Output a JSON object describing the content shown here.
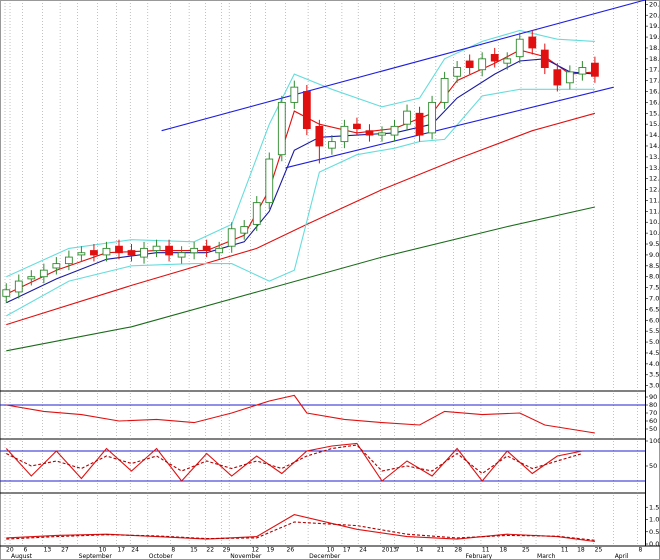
{
  "chart_data": {
    "type": "candlestick",
    "xlim": [
      -0.5,
      51
    ],
    "xticks": [
      {
        "value": -0.1,
        "label": "20"
      },
      {
        "value": 0.3,
        "label": "August"
      },
      {
        "value": 1.3,
        "label": "6"
      },
      {
        "value": 2.9,
        "label": "13"
      },
      {
        "value": 4.3,
        "label": "27"
      },
      {
        "value": 5.7,
        "label": "September"
      },
      {
        "value": 7.3,
        "label": "10"
      },
      {
        "value": 8.8,
        "label": "17"
      },
      {
        "value": 9.9,
        "label": "24"
      },
      {
        "value": 11.3,
        "label": "October"
      },
      {
        "value": 13.1,
        "label": "8"
      },
      {
        "value": 14.6,
        "label": "15"
      },
      {
        "value": 15.9,
        "label": "22"
      },
      {
        "value": 17.2,
        "label": "29"
      },
      {
        "value": 17.8,
        "label": "November"
      },
      {
        "value": 19.5,
        "label": "12"
      },
      {
        "value": 20.7,
        "label": "19"
      },
      {
        "value": 22.3,
        "label": "26"
      },
      {
        "value": 24.1,
        "label": "December"
      },
      {
        "value": 25.5,
        "label": "10"
      },
      {
        "value": 26.8,
        "label": "17"
      },
      {
        "value": 28.1,
        "label": "24"
      },
      {
        "value": 29.9,
        "label": "2013"
      },
      {
        "value": 31.0,
        "label": "7"
      },
      {
        "value": 32.6,
        "label": "14"
      },
      {
        "value": 34.3,
        "label": "21"
      },
      {
        "value": 35.7,
        "label": "28"
      },
      {
        "value": 36.6,
        "label": "February"
      },
      {
        "value": 37.9,
        "label": "11"
      },
      {
        "value": 39.3,
        "label": "18"
      },
      {
        "value": 41.1,
        "label": "25"
      },
      {
        "value": 42.3,
        "label": "March"
      },
      {
        "value": 44.2,
        "label": "11"
      },
      {
        "value": 45.5,
        "label": "18"
      },
      {
        "value": 46.9,
        "label": "25"
      },
      {
        "value": 48.5,
        "label": "April"
      },
      {
        "value": 50.4,
        "label": "8"
      }
    ],
    "ylim": [
      2.8,
      20.7
    ],
    "yticks": [
      {
        "value": 3,
        "label": "3.0"
      },
      3.5,
      {
        "value": 4,
        "label": "4.0"
      },
      4.5,
      {
        "value": 5,
        "label": "5.0"
      },
      5.5,
      {
        "value": 6,
        "label": "6.0"
      },
      6.5,
      {
        "value": 7,
        "label": "7.0"
      },
      7.5,
      {
        "value": 8,
        "label": "8.0"
      },
      8.5,
      {
        "value": 9,
        "label": "9.0"
      },
      9.5,
      {
        "value": 10,
        "label": "10.0"
      },
      10.5,
      {
        "value": 11,
        "label": "11.0"
      },
      11.5,
      {
        "value": 12,
        "label": "12.0"
      },
      12.5,
      {
        "value": 13,
        "label": "13.0"
      },
      13.5,
      {
        "value": 14,
        "label": "14.0"
      },
      14.5,
      {
        "value": 15,
        "label": "15.0"
      },
      15.5,
      {
        "value": 16,
        "label": "16.0"
      },
      16.5,
      {
        "value": 17,
        "label": "17.0"
      },
      17.5,
      {
        "value": 18,
        "label": "18.0"
      },
      18.5,
      {
        "value": 19,
        "label": "19.0"
      },
      19.5,
      {
        "value": 20,
        "label": "20.0"
      },
      20.5
    ],
    "up_color": "#2e8b2e",
    "down_color": "#e01010",
    "open": [
      7.1,
      7.3,
      7.9,
      8.0,
      8.4,
      8.6,
      9.0,
      9.2,
      9.0,
      9.4,
      9.2,
      8.9,
      9.2,
      9.4,
      8.9,
      9.1,
      9.4,
      9.1,
      9.4,
      10.0,
      10.4,
      11.4,
      13.6,
      16.0,
      16.5,
      14.9,
      13.9,
      14.2,
      15.0,
      14.7,
      14.5,
      14.5,
      15.0,
      15.5,
      14.6,
      16.0,
      17.2,
      17.9,
      17.5,
      18.2,
      17.8,
      18.1,
      19.0,
      18.4,
      17.5,
      16.9,
      17.3,
      17.8
    ],
    "high": [
      7.7,
      8.1,
      8.3,
      8.6,
      8.9,
      9.2,
      9.4,
      9.5,
      9.6,
      9.7,
      9.5,
      9.6,
      9.7,
      9.7,
      9.4,
      9.6,
      9.7,
      9.6,
      10.5,
      10.6,
      11.7,
      13.7,
      16.3,
      17.0,
      16.8,
      15.2,
      14.5,
      15.2,
      15.3,
      15.0,
      14.9,
      15.2,
      15.9,
      15.8,
      16.3,
      17.4,
      17.9,
      18.2,
      18.3,
      18.5,
      18.3,
      19.2,
      19.3,
      18.7,
      17.8,
      17.7,
      17.9,
      18.1
    ],
    "low": [
      6.8,
      7.0,
      7.6,
      7.7,
      8.1,
      8.3,
      8.7,
      8.7,
      8.7,
      8.8,
      8.7,
      8.6,
      8.9,
      8.7,
      8.6,
      8.8,
      8.9,
      8.8,
      9.1,
      9.7,
      10.1,
      11.1,
      13.3,
      15.7,
      14.5,
      13.2,
      13.6,
      13.9,
      14.5,
      14.2,
      14.2,
      14.2,
      14.7,
      14.2,
      14.3,
      15.7,
      16.9,
      17.3,
      17.2,
      17.6,
      17.5,
      17.8,
      18.2,
      17.3,
      16.5,
      16.6,
      17.0,
      16.9
    ],
    "close": [
      7.4,
      7.8,
      8.0,
      8.3,
      8.6,
      8.9,
      9.1,
      9.0,
      9.3,
      9.1,
      9.0,
      9.3,
      9.4,
      9.0,
      9.1,
      9.3,
      9.2,
      9.3,
      10.2,
      10.3,
      11.4,
      13.4,
      16.0,
      16.7,
      14.8,
      14.0,
      14.2,
      14.9,
      14.8,
      14.5,
      14.6,
      14.9,
      15.6,
      14.5,
      16.0,
      17.1,
      17.6,
      17.6,
      18.0,
      17.9,
      18.0,
      18.9,
      18.5,
      17.6,
      16.8,
      17.4,
      17.6,
      17.2
    ],
    "series": [
      {
        "color": "#1a6b1a",
        "x": [
          0,
          10,
          20,
          30,
          40,
          47
        ],
        "values": [
          4.6,
          5.7,
          7.3,
          8.9,
          10.3,
          11.2
        ]
      },
      {
        "color": "#e01010",
        "x": [
          0,
          10,
          20,
          24,
          30,
          36,
          42,
          47
        ],
        "values": [
          5.8,
          7.6,
          9.3,
          10.4,
          12.0,
          13.4,
          14.7,
          15.5
        ]
      },
      {
        "color": "#66dddd",
        "x": [
          0,
          5,
          10,
          15,
          18,
          21,
          23,
          26,
          30,
          33,
          35,
          38,
          41,
          44,
          47
        ],
        "values": [
          8.0,
          9.3,
          9.7,
          9.6,
          10.4,
          15.0,
          17.3,
          16.6,
          15.8,
          16.2,
          18.0,
          18.8,
          19.3,
          18.9,
          18.8
        ]
      },
      {
        "color": "#66dddd",
        "x": [
          0,
          5,
          10,
          15,
          18,
          21,
          23,
          25,
          28,
          31,
          33,
          35,
          38,
          41,
          44,
          47
        ],
        "values": [
          6.2,
          7.8,
          8.5,
          8.6,
          8.6,
          7.8,
          8.3,
          12.8,
          13.6,
          13.9,
          14.2,
          14.3,
          16.3,
          16.6,
          16.6,
          16.6
        ]
      },
      {
        "color": "#e01010",
        "x": [
          0,
          4,
          8,
          12,
          16,
          19,
          21,
          23,
          25,
          28,
          31,
          34,
          36,
          39,
          41,
          43,
          45,
          47
        ],
        "values": [
          7.2,
          8.3,
          9.1,
          9.2,
          9.2,
          9.9,
          12.0,
          15.6,
          15.0,
          14.6,
          14.8,
          15.5,
          17.0,
          17.8,
          18.4,
          18.1,
          17.3,
          17.4
        ]
      },
      {
        "color": "#1a1aa0",
        "x": [
          0,
          4,
          8,
          12,
          16,
          19,
          21,
          23,
          25,
          28,
          31,
          34,
          36,
          39,
          41,
          43,
          45,
          47
        ],
        "values": [
          6.8,
          7.9,
          8.8,
          9.1,
          9.1,
          9.6,
          11.0,
          13.8,
          14.4,
          14.5,
          14.6,
          15.0,
          16.2,
          17.3,
          17.9,
          18.0,
          17.4,
          17.3
        ]
      }
    ],
    "trendlines": {
      "color": "#1f1fdd",
      "lines": [
        {
          "x": [
            12.4,
            51
          ],
          "values": [
            14.7,
            20.7
          ]
        },
        {
          "x": [
            22.3,
            48.5
          ],
          "values": [
            13.0,
            16.7
          ]
        }
      ]
    },
    "panels": [
      {
        "type": "line",
        "ylim": [
          40,
          95
        ],
        "yticks": [
          50,
          60,
          70,
          80,
          90
        ],
        "hlines": [
          80
        ],
        "hline_color": "#2020d0",
        "series": [
          {
            "color": "#e01010",
            "x": [
              0,
              3,
              6,
              9,
              12,
              15,
              18,
              21,
              23,
              24,
              27,
              30,
              33,
              35,
              38,
              41,
              43,
              45,
              47
            ],
            "values": [
              80,
              72,
              68,
              60,
              62,
              58,
              70,
              85,
              92,
              70,
              62,
              58,
              55,
              72,
              68,
              70,
              55,
              50,
              45
            ]
          }
        ]
      },
      {
        "type": "line",
        "ylim": [
          0,
          100
        ],
        "yticks": [
          50,
          100
        ],
        "hlines": [
          80,
          20
        ],
        "hline_color": "#2020d0",
        "series": [
          {
            "color": "#e01010",
            "x": [
              0,
              2,
              4,
              6,
              8,
              10,
              12,
              14,
              16,
              18,
              20,
              22,
              24,
              26,
              28,
              30,
              32,
              34,
              36,
              38,
              40,
              42,
              44,
              46
            ],
            "values": [
              85,
              30,
              80,
              25,
              85,
              40,
              85,
              20,
              75,
              30,
              70,
              35,
              80,
              90,
              95,
              20,
              60,
              30,
              85,
              20,
              80,
              35,
              70,
              80
            ]
          },
          {
            "color": "#b00000",
            "dashed": true,
            "x": [
              0,
              2,
              4,
              6,
              8,
              10,
              12,
              14,
              16,
              18,
              20,
              22,
              24,
              26,
              28,
              30,
              32,
              34,
              36,
              38,
              40,
              42,
              44,
              46
            ],
            "values": [
              75,
              50,
              60,
              45,
              70,
              55,
              70,
              40,
              60,
              45,
              60,
              45,
              70,
              85,
              92,
              40,
              50,
              40,
              75,
              35,
              70,
              45,
              60,
              75
            ]
          }
        ]
      },
      {
        "type": "line",
        "ylim": [
          0,
          2
        ],
        "yticks": [
          {
            "value": 0,
            "label": "0.0"
          },
          0.5,
          {
            "value": 1,
            "label": "1.0"
          },
          1.5
        ],
        "hlines": [],
        "hline_color": "#2020d0",
        "series": [
          {
            "color": "#e01010",
            "x": [
              0,
              4,
              8,
              12,
              16,
              20,
              23,
              28,
              32,
              36,
              40,
              44,
              47
            ],
            "values": [
              0.25,
              0.35,
              0.4,
              0.3,
              0.2,
              0.3,
              1.2,
              0.6,
              0.3,
              0.2,
              0.4,
              0.3,
              0.1
            ]
          },
          {
            "color": "#b00000",
            "dashed": true,
            "x": [
              0,
              4,
              8,
              12,
              16,
              20,
              23,
              28,
              32,
              36,
              40,
              44,
              47
            ],
            "values": [
              0.2,
              0.3,
              0.38,
              0.33,
              0.22,
              0.25,
              0.9,
              0.75,
              0.4,
              0.25,
              0.35,
              0.32,
              0.15
            ]
          }
        ]
      }
    ]
  }
}
